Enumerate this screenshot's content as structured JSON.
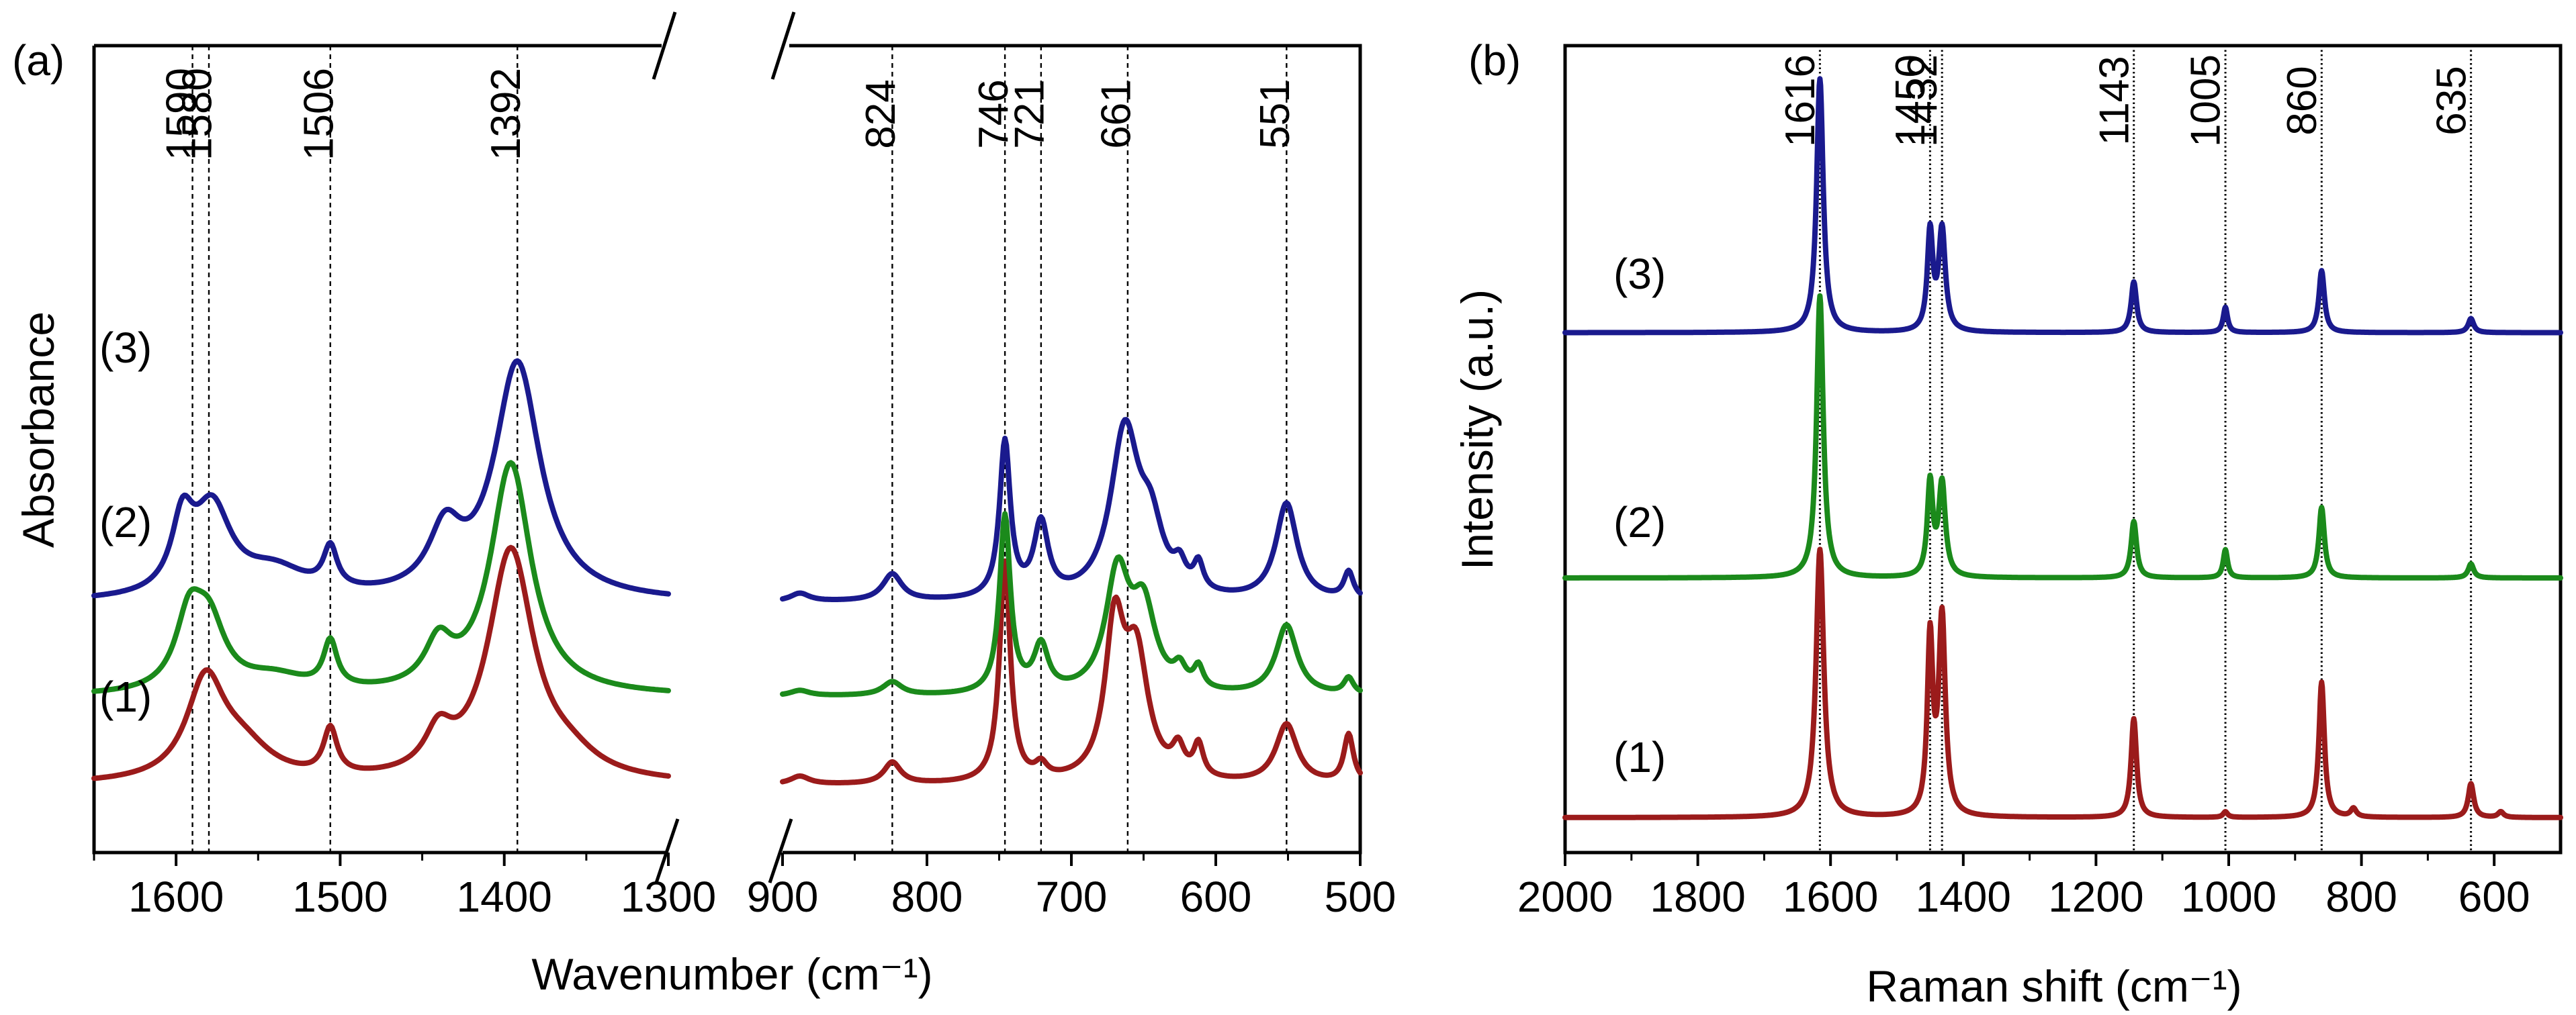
{
  "colors": {
    "curve1": "#9b1b1b",
    "curve2": "#1b8a1b",
    "curve3": "#1a1a8e"
  },
  "chart_data": [
    {
      "panel": "(a)",
      "type": "line",
      "title": "",
      "xlabel": "Wavenumber (cm⁻¹)",
      "ylabel": "Absorbance",
      "axis_break": true,
      "segments": [
        {
          "xlim": [
            1650,
            1300
          ],
          "ticks": [
            1600,
            1500,
            1400,
            1300
          ]
        },
        {
          "xlim": [
            900,
            500
          ],
          "ticks": [
            900,
            800,
            700,
            600,
            500
          ]
        }
      ],
      "tick_labels_a": [
        "1600",
        "1500",
        "1400",
        "1300"
      ],
      "tick_labels_b": [
        "900",
        "800",
        "700",
        "600",
        "500"
      ],
      "reference_peaks": [
        {
          "x": 1590,
          "label": "1590"
        },
        {
          "x": 1580,
          "label": "1580"
        },
        {
          "x": 1506,
          "label": "1506"
        },
        {
          "x": 1392,
          "label": "1392"
        },
        {
          "x": 824,
          "label": "824"
        },
        {
          "x": 746,
          "label": "746"
        },
        {
          "x": 721,
          "label": "721"
        },
        {
          "x": 661,
          "label": "661"
        },
        {
          "x": 551,
          "label": "551"
        }
      ],
      "curve_labels": [
        "(1)",
        "(2)",
        "(3)"
      ],
      "series": [
        {
          "name": "(1)",
          "offset": 0.0,
          "peaks": [
            [
              1582,
              0.36,
              14
            ],
            [
              1560,
              0.12,
              22
            ],
            [
              1506,
              0.17,
              5
            ],
            [
              1440,
              0.14,
              10
            ],
            [
              1396,
              0.86,
              17
            ],
            [
              1360,
              0.06,
              20
            ],
            [
              888,
              0.03,
              8
            ],
            [
              824,
              0.08,
              7
            ],
            [
              746,
              0.82,
              4.5
            ],
            [
              721,
              0.05,
              5
            ],
            [
              670,
              0.55,
              8
            ],
            [
              655,
              0.45,
              10
            ],
            [
              626,
              0.1,
              5
            ],
            [
              612,
              0.12,
              4
            ],
            [
              551,
              0.22,
              9
            ],
            [
              508,
              0.18,
              4
            ]
          ]
        },
        {
          "name": "(2)",
          "offset": 0.33,
          "peaks": [
            [
              1592,
              0.25,
              10
            ],
            [
              1580,
              0.24,
              12
            ],
            [
              1540,
              0.06,
              25
            ],
            [
              1506,
              0.17,
              5
            ],
            [
              1440,
              0.16,
              10
            ],
            [
              1396,
              0.86,
              15
            ],
            [
              888,
              0.02,
              8
            ],
            [
              824,
              0.05,
              8
            ],
            [
              746,
              0.66,
              4.5
            ],
            [
              721,
              0.17,
              6
            ],
            [
              668,
              0.44,
              10
            ],
            [
              650,
              0.3,
              10
            ],
            [
              625,
              0.07,
              5
            ],
            [
              612,
              0.08,
              4
            ],
            [
              551,
              0.26,
              9
            ],
            [
              508,
              0.06,
              4
            ]
          ]
        },
        {
          "name": "(3)",
          "offset": 0.68,
          "peaks": [
            [
              1596,
              0.25,
              8
            ],
            [
              1578,
              0.32,
              14
            ],
            [
              1540,
              0.1,
              25
            ],
            [
              1506,
              0.15,
              5
            ],
            [
              1436,
              0.22,
              12
            ],
            [
              1392,
              0.88,
              17
            ],
            [
              888,
              0.03,
              8
            ],
            [
              824,
              0.1,
              8
            ],
            [
              746,
              0.58,
              4.5
            ],
            [
              721,
              0.27,
              6
            ],
            [
              663,
              0.62,
              12
            ],
            [
              645,
              0.22,
              10
            ],
            [
              625,
              0.08,
              5
            ],
            [
              612,
              0.1,
              4
            ],
            [
              551,
              0.36,
              9
            ],
            [
              508,
              0.1,
              4
            ]
          ]
        }
      ]
    },
    {
      "panel": "(b)",
      "type": "line",
      "title": "",
      "xlabel": "Raman shift (cm⁻¹)",
      "ylabel": "Intensity (a.u.)",
      "xlim": [
        2000,
        500
      ],
      "ticks": [
        2000,
        1800,
        1600,
        1400,
        1200,
        1000,
        800,
        600
      ],
      "tick_labels": [
        "2000",
        "1800",
        "1600",
        "1400",
        "1200",
        "1000",
        "800",
        "600"
      ],
      "reference_peaks": [
        {
          "x": 1616,
          "label": "1616"
        },
        {
          "x": 1450,
          "label": "1450"
        },
        {
          "x": 1432,
          "label": "1432"
        },
        {
          "x": 1143,
          "label": "1143"
        },
        {
          "x": 1005,
          "label": "1005"
        },
        {
          "x": 860,
          "label": "860"
        },
        {
          "x": 635,
          "label": "635"
        }
      ],
      "curve_labels": [
        "(1)",
        "(2)",
        "(3)"
      ],
      "series": [
        {
          "name": "(1)",
          "offset": 0.0,
          "peaks": [
            [
              1616,
              0.95,
              7
            ],
            [
              1450,
              0.62,
              5
            ],
            [
              1432,
              0.7,
              6
            ],
            [
              1143,
              0.35,
              5
            ],
            [
              1005,
              0.02,
              4
            ],
            [
              860,
              0.48,
              5
            ],
            [
              812,
              0.03,
              5
            ],
            [
              635,
              0.12,
              5
            ],
            [
              590,
              0.02,
              5
            ]
          ]
        },
        {
          "name": "(2)",
          "offset": 0.85,
          "peaks": [
            [
              1616,
              1.0,
              6
            ],
            [
              1450,
              0.33,
              5
            ],
            [
              1432,
              0.33,
              6
            ],
            [
              1143,
              0.2,
              5
            ],
            [
              1005,
              0.1,
              4
            ],
            [
              860,
              0.25,
              5
            ],
            [
              635,
              0.05,
              5
            ]
          ]
        },
        {
          "name": "(3)",
          "offset": 1.72,
          "peaks": [
            [
              1616,
              0.9,
              6
            ],
            [
              1450,
              0.35,
              5
            ],
            [
              1432,
              0.36,
              6
            ],
            [
              1143,
              0.18,
              5
            ],
            [
              1005,
              0.09,
              4
            ],
            [
              860,
              0.22,
              5
            ],
            [
              635,
              0.05,
              5
            ]
          ]
        }
      ]
    }
  ]
}
